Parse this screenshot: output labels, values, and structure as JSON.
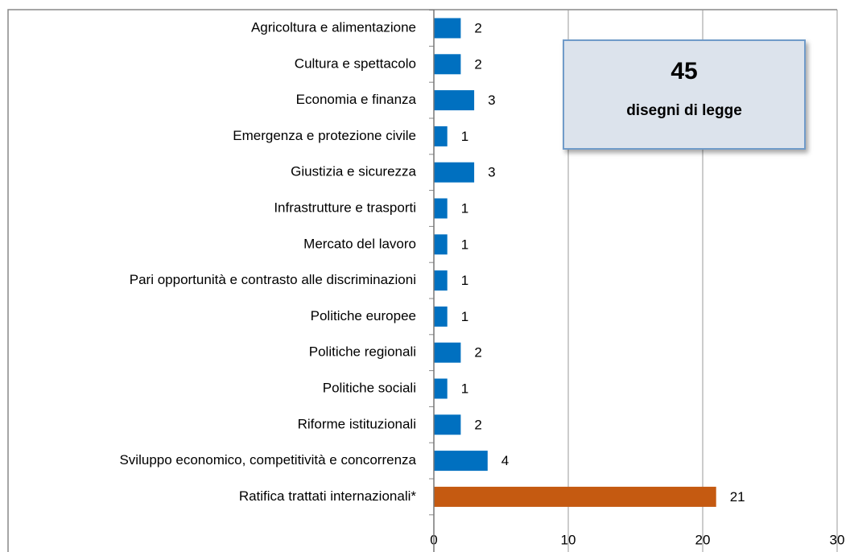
{
  "chart_data": {
    "type": "bar",
    "orientation": "horizontal",
    "categories": [
      "Agricoltura e alimentazione",
      "Cultura e spettacolo",
      "Economia e finanza",
      "Emergenza e protezione civile",
      "Giustizia e sicurezza",
      "Infrastrutture e trasporti",
      "Mercato del lavoro",
      "Pari opportunità e contrasto alle discriminazioni",
      "Politiche europee",
      "Politiche regionali",
      "Politiche sociali",
      "Riforme istituzionali",
      "Sviluppo economico, competitività e concorrenza",
      "Ratifica trattati internazionali*"
    ],
    "values": [
      2,
      2,
      3,
      1,
      3,
      1,
      1,
      1,
      1,
      2,
      1,
      2,
      4,
      21
    ],
    "colors": [
      "#0070c0",
      "#0070c0",
      "#0070c0",
      "#0070c0",
      "#0070c0",
      "#0070c0",
      "#0070c0",
      "#0070c0",
      "#0070c0",
      "#0070c0",
      "#0070c0",
      "#0070c0",
      "#0070c0",
      "#c55a11"
    ],
    "xlim": [
      0,
      30
    ],
    "xticks": [
      0,
      10,
      20,
      30
    ],
    "grid": true,
    "annotations": [
      "45",
      "disegni di legge"
    ]
  }
}
